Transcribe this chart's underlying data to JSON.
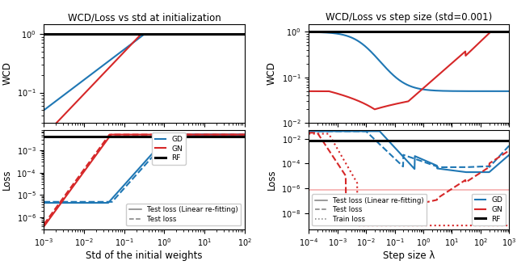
{
  "title_left": "WCD/Loss vs std at initialization",
  "title_right": "WCD/Loss vs step size (std=0.001)",
  "xlabel_left": "Std of the initial weights",
  "xlabel_right": "Step size λ",
  "ylabel_wcd": "WCD",
  "ylabel_loss": "Loss",
  "color_gd": "#1f77b4",
  "color_gn": "#d62728",
  "color_rf": "#000000",
  "color_gray": "#7f7f7f",
  "color_pink": "#f5a0a0"
}
